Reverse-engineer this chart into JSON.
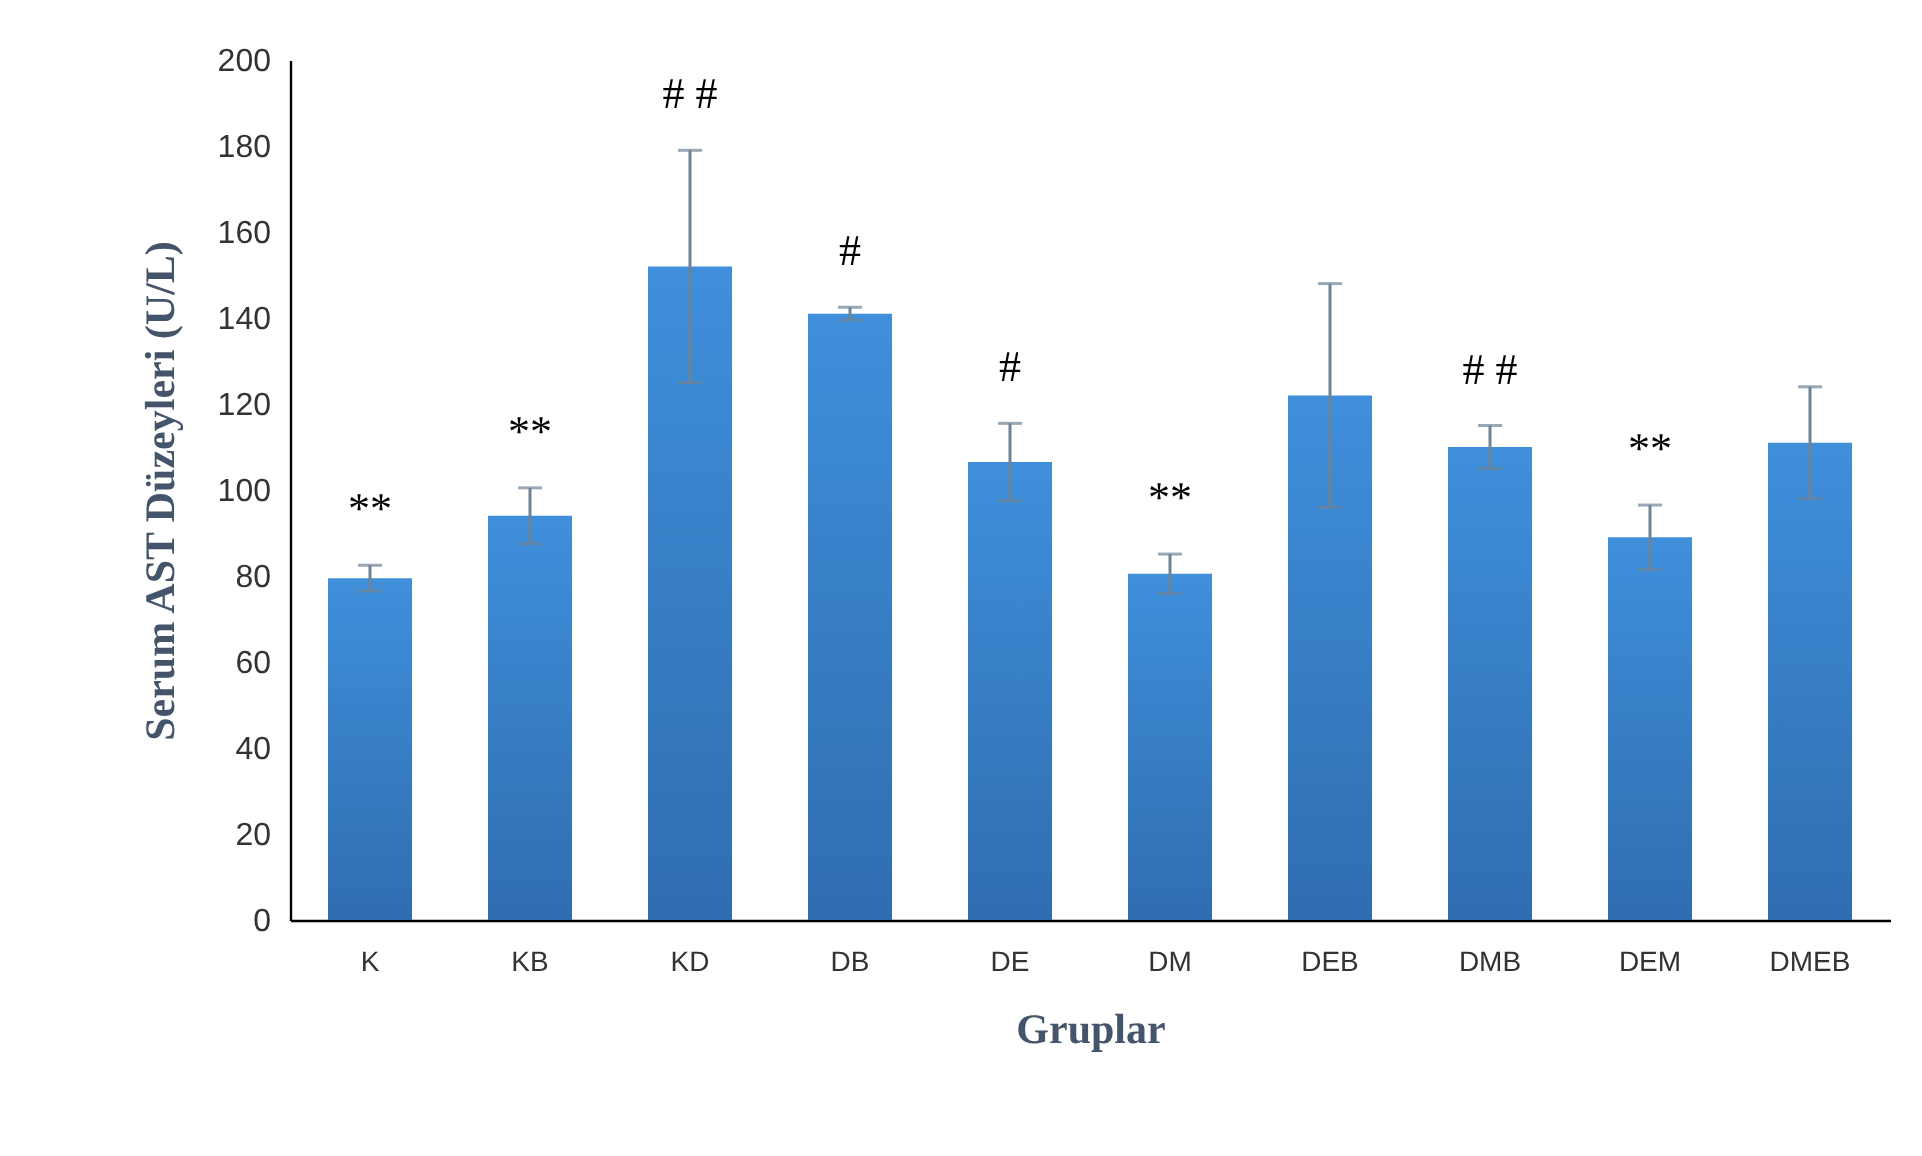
{
  "chart_data": {
    "type": "bar",
    "xlabel": "Gruplar",
    "ylabel": "Serum AST Düzeyleri (U/L)",
    "categories": [
      "K",
      "KB",
      "KD",
      "DB",
      "DE",
      "DM",
      "DEB",
      "DMB",
      "DEM",
      "DMEB"
    ],
    "values": [
      79.5,
      94,
      152,
      141,
      106.5,
      80.5,
      122,
      110,
      89,
      111
    ],
    "errors": [
      3,
      6.5,
      27,
      1.5,
      9,
      4.6,
      26,
      5,
      7.5,
      13
    ],
    "color": "#3f8fdb",
    "ylim": [
      0,
      200
    ],
    "yticks": [
      0,
      20,
      40,
      60,
      80,
      100,
      120,
      140,
      160,
      180,
      200
    ],
    "grid": false,
    "annotations": [
      {
        "text": "**",
        "x": "K",
        "y": 82.5
      },
      {
        "text": "**",
        "x": "KB",
        "y": 100.5
      },
      {
        "text": "# #",
        "x": "KD",
        "y": 179
      },
      {
        "text": "#",
        "x": "DB",
        "y": 142.5
      },
      {
        "text": "#",
        "x": "DE",
        "y": 115.5
      },
      {
        "text": "**",
        "x": "DM",
        "y": 85.1
      },
      {
        "text": "# #",
        "x": "DMB",
        "y": 115
      },
      {
        "text": "**",
        "x": "DEM",
        "y": 96.5
      }
    ]
  }
}
